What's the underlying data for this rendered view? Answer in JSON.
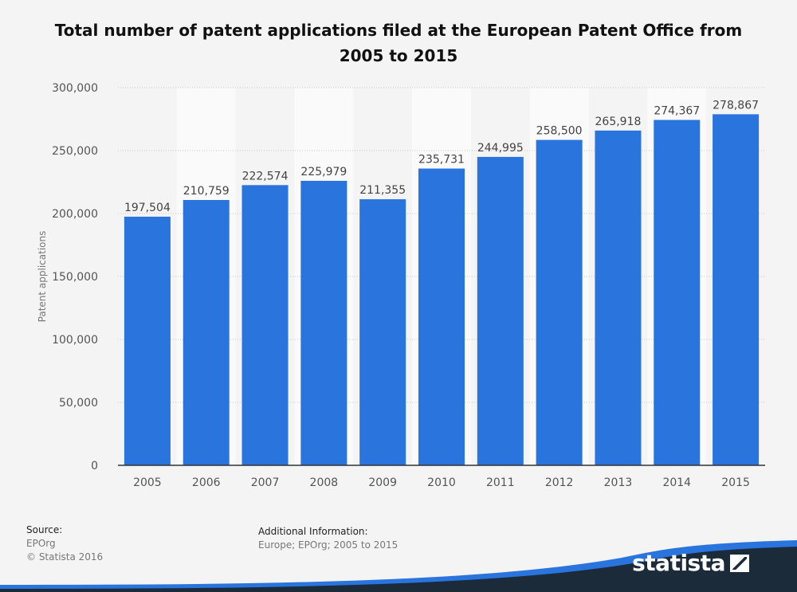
{
  "title": "Total number of patent applications filed at the European Patent Office from 2005 to 2015",
  "chart_data": {
    "type": "bar",
    "categories": [
      "2005",
      "2006",
      "2007",
      "2008",
      "2009",
      "2010",
      "2011",
      "2012",
      "2013",
      "2014",
      "2015"
    ],
    "values": [
      197504,
      210759,
      222574,
      225979,
      211355,
      235731,
      244995,
      258500,
      265918,
      274367,
      278867
    ],
    "value_labels": [
      "197,504",
      "210,759",
      "222,574",
      "225,979",
      "211,355",
      "235,731",
      "244,995",
      "258,500",
      "265,918",
      "274,367",
      "278,867"
    ],
    "ylabel": "Patent applications",
    "ylim": [
      0,
      300000
    ],
    "yticks": [
      0,
      50000,
      100000,
      150000,
      200000,
      250000,
      300000
    ],
    "ytick_labels": [
      "0",
      "50,000",
      "100,000",
      "150,000",
      "200,000",
      "250,000",
      "300,000"
    ],
    "grid": true,
    "bar_color": "#2a75dd"
  },
  "footer": {
    "source_label": "Source:",
    "source_value": "EPOrg",
    "copyright": "© Statista 2016",
    "additional_label": "Additional Information:",
    "additional_value": "Europe; EPOrg; 2005 to 2015"
  },
  "brand": {
    "name": "statista",
    "icon": "statista-logo-icon",
    "color": "#1c2b3a"
  }
}
